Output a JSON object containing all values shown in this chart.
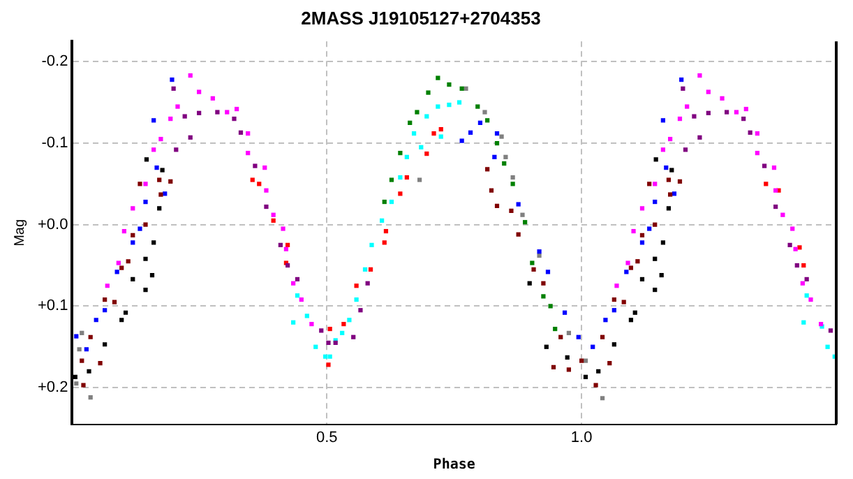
{
  "chart_data": {
    "type": "scatter",
    "title": "2MASS J19105127+2704353",
    "xlabel": "Phase",
    "ylabel": "Mag",
    "xlim": [
      0,
      1.5
    ],
    "xticks": [
      0.5,
      {
        "value": 1,
        "label": "1.0"
      }
    ],
    "ylim": [
      0.245,
      -0.225
    ],
    "yticks": [
      {
        "value": -0.2,
        "label": "-0.2"
      },
      {
        "value": -0.1,
        "label": "-0.1"
      },
      {
        "value": 0,
        "label": "+0.0"
      },
      {
        "value": 0.1,
        "label": "+0.1"
      },
      {
        "value": 0.2,
        "label": "+0.2"
      }
    ],
    "grid": true,
    "legend": false,
    "marker": "square",
    "series": [
      {
        "color": "#ff00ff",
        "x": [
          0.069,
          0.091,
          0.102,
          0.119,
          0.144,
          0.16,
          0.174,
          0.193,
          0.207,
          0.232,
          0.249,
          0.276,
          0.304,
          0.323,
          0.345,
          0.345,
          0.378,
          0.381,
          0.395,
          0.414,
          0.42,
          0.434,
          0.45,
          0.47,
          1.069,
          1.091,
          1.102,
          1.119,
          1.144,
          1.16,
          1.174,
          1.193,
          1.207,
          1.232,
          1.249,
          1.276,
          1.304,
          1.323,
          1.345,
          1.345,
          1.378,
          1.381,
          1.395,
          1.414,
          1.42,
          1.434,
          1.45,
          1.47
        ],
        "values": [
          0.075,
          0.047,
          0.008,
          -0.02,
          -0.05,
          -0.092,
          -0.105,
          -0.13,
          -0.145,
          -0.183,
          -0.163,
          -0.155,
          -0.138,
          -0.142,
          -0.112,
          -0.088,
          -0.07,
          -0.042,
          -0.012,
          0.005,
          0.03,
          0.072,
          0.092,
          0.122,
          0.075,
          0.047,
          0.008,
          -0.02,
          -0.05,
          -0.092,
          -0.105,
          -0.13,
          -0.145,
          -0.183,
          -0.163,
          -0.155,
          -0.138,
          -0.142,
          -0.112,
          -0.088,
          -0.07,
          -0.042,
          -0.012,
          0.005,
          0.03,
          0.072,
          0.092,
          0.122
        ]
      },
      {
        "color": "#800080",
        "x": [
          0.199,
          0.221,
          0.249,
          0.285,
          0.318,
          0.331,
          0.232,
          0.204,
          0.359,
          0.381,
          0.409,
          0.423,
          0.442,
          0.489,
          0.503,
          0.517,
          0.552,
          0.566,
          0.58,
          1.199,
          1.221,
          1.249,
          1.285,
          1.318,
          1.331,
          1.232,
          1.204,
          1.359,
          1.381,
          1.409,
          1.423,
          1.442,
          1.489
        ],
        "values": [
          -0.167,
          -0.133,
          -0.137,
          -0.138,
          -0.13,
          -0.113,
          -0.107,
          -0.092,
          -0.072,
          -0.022,
          0.025,
          0.05,
          0.067,
          0.13,
          0.145,
          0.145,
          0.138,
          0.105,
          0.072,
          -0.167,
          -0.133,
          -0.137,
          -0.138,
          -0.13,
          -0.113,
          -0.107,
          -0.092,
          -0.072,
          -0.022,
          0.025,
          0.05,
          0.067,
          0.13
        ]
      },
      {
        "color": "#800000",
        "x": [
          0.019,
          0.022,
          0.036,
          0.055,
          0.064,
          0.083,
          0.097,
          0.11,
          0.119,
          0.144,
          0.133,
          0.171,
          0.193,
          0.174,
          0.815,
          0.823,
          0.834,
          0.862,
          0.876,
          0.906,
          0.925,
          0.945,
          0.959,
          0.975,
          1.0,
          1.028,
          1.041,
          1.055,
          1.064,
          1.083,
          1.097,
          1.11,
          1.119,
          1.144,
          1.133,
          1.171,
          1.193,
          1.174
        ],
        "values": [
          0.167,
          0.197,
          0.138,
          0.17,
          0.092,
          0.095,
          0.053,
          0.045,
          0.013,
          0,
          -0.05,
          -0.055,
          -0.053,
          -0.037,
          -0.068,
          -0.042,
          -0.023,
          -0.017,
          0.012,
          0.055,
          0.072,
          0.175,
          0.138,
          0.178,
          0.167,
          0.197,
          0.138,
          0.17,
          0.092,
          0.095,
          0.053,
          0.045,
          0.013,
          0,
          -0.05,
          -0.055,
          -0.053,
          -0.037
        ]
      },
      {
        "color": "#000000",
        "x": [
          0.006,
          0.033,
          0.064,
          0.097,
          0.105,
          0.119,
          0.144,
          0.157,
          0.144,
          0.16,
          0.171,
          0.177,
          0.146,
          0.898,
          0.931,
          0.972,
          1.008,
          1.033,
          1.064,
          1.097,
          1.105,
          1.119,
          1.144,
          1.157,
          1.144,
          1.16,
          1.171,
          1.177,
          1.146
        ],
        "values": [
          0.187,
          0.18,
          0.147,
          0.117,
          0.108,
          0.067,
          0.08,
          0.062,
          0.042,
          0.022,
          -0.02,
          -0.067,
          -0.08,
          0.072,
          0.15,
          0.163,
          0.187,
          0.18,
          0.147,
          0.117,
          0.108,
          0.067,
          0.08,
          0.062,
          0.042,
          0.022,
          -0.02,
          -0.067,
          -0.08
        ]
      },
      {
        "color": "#0000ff",
        "x": [
          0.008,
          0.028,
          0.047,
          0.064,
          0.088,
          0.119,
          0.133,
          0.144,
          0.182,
          0.166,
          0.16,
          0.196,
          0.765,
          0.782,
          0.801,
          0.834,
          0.829,
          0.876,
          0.917,
          0.934,
          0.967,
          0.994,
          1.022,
          1.047,
          1.064,
          1.088,
          1.119,
          1.133,
          1.144,
          1.182,
          1.166,
          1.16,
          1.196
        ],
        "values": [
          0.137,
          0.153,
          0.117,
          0.105,
          0.058,
          0.022,
          0.005,
          -0.028,
          -0.038,
          -0.07,
          -0.128,
          -0.178,
          -0.103,
          -0.113,
          -0.125,
          -0.112,
          -0.083,
          -0.025,
          0.033,
          0.058,
          0.108,
          0.138,
          0.15,
          0.117,
          0.105,
          0.058,
          0.022,
          0.005,
          -0.028,
          -0.038,
          -0.07,
          -0.128,
          -0.178
        ]
      },
      {
        "color": "#00ffff",
        "x": [
          0.442,
          0.434,
          0.461,
          0.478,
          0.497,
          0.517,
          0.506,
          0.53,
          0.544,
          0.558,
          0.575,
          0.588,
          0.608,
          0.627,
          0.644,
          0.657,
          0.671,
          0.696,
          0.718,
          0.74,
          0.76,
          0.724,
          0.685,
          1.442,
          1.436,
          1.472,
          1.483,
          1.497
        ],
        "values": [
          0.087,
          0.12,
          0.112,
          0.15,
          0.162,
          0.142,
          0.162,
          0.133,
          0.117,
          0.092,
          0.055,
          0.025,
          -0.005,
          -0.028,
          -0.058,
          -0.083,
          -0.112,
          -0.133,
          -0.145,
          -0.147,
          -0.15,
          -0.108,
          -0.095,
          0.087,
          0.12,
          0.125,
          0.15,
          0.162
        ]
      },
      {
        "color": "#008000",
        "x": [
          0.718,
          0.74,
          0.765,
          0.699,
          0.677,
          0.663,
          0.644,
          0.627,
          0.613,
          0.796,
          0.815,
          0.834,
          0.848,
          0.865,
          0.889,
          0.903,
          0.925,
          0.939,
          0.948
        ],
        "values": [
          -0.18,
          -0.172,
          -0.167,
          -0.162,
          -0.138,
          -0.125,
          -0.088,
          -0.055,
          -0.028,
          -0.145,
          -0.128,
          -0.1,
          -0.075,
          -0.05,
          -0.003,
          0.047,
          0.088,
          0.1,
          0.128
        ]
      },
      {
        "color": "#ff0000",
        "x": [
          0.354,
          0.367,
          0.395,
          0.423,
          0.42,
          0.503,
          0.506,
          0.533,
          0.558,
          0.586,
          0.613,
          0.616,
          0.644,
          0.657,
          0.696,
          0.71,
          0.724,
          1.362,
          1.387,
          1.428,
          1.436
        ],
        "values": [
          -0.055,
          -0.05,
          -0.005,
          0.025,
          0.047,
          0.172,
          0.128,
          0.122,
          0.075,
          0.055,
          0.022,
          0.008,
          -0.038,
          -0.058,
          -0.087,
          -0.112,
          -0.117,
          -0.05,
          -0.042,
          0.028,
          0.05
        ]
      },
      {
        "color": "#808080",
        "x": [
          0.036,
          0.019,
          0.014,
          0.008,
          0.773,
          0.81,
          0.843,
          0.851,
          0.865,
          0.884,
          0.917,
          0.975,
          1.008,
          1.041,
          0.682
        ],
        "values": [
          0.212,
          0.133,
          0.153,
          0.195,
          -0.167,
          -0.138,
          -0.108,
          -0.083,
          -0.058,
          -0.012,
          0.038,
          0.133,
          0.167,
          0.213,
          -0.055
        ]
      }
    ]
  }
}
